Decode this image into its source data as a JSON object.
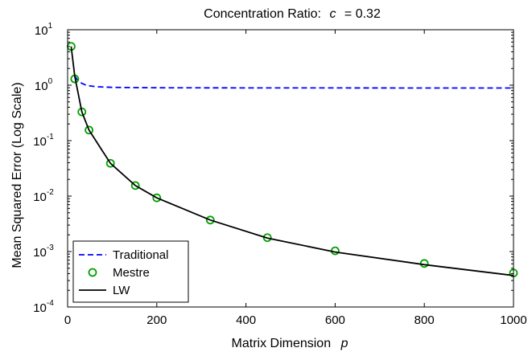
{
  "chart_data": {
    "type": "line",
    "title": "Concentration Ratio:",
    "title_symbol": "c",
    "title_value": "= 0.32",
    "xlabel": "Matrix Dimension",
    "xlabel_symbol": "p",
    "ylabel": "Mean Squared Error (Log Scale)",
    "xlim": [
      0,
      1000
    ],
    "ylim": [
      0.0001,
      10
    ],
    "yscale": "log",
    "grid": false,
    "legend_position": "bottom-left",
    "x_ticks": [
      0,
      200,
      400,
      600,
      800,
      1000
    ],
    "x_tick_labels": [
      "0",
      "200",
      "400",
      "600",
      "800",
      "1000"
    ],
    "y_ticks": [
      0.0001,
      0.001,
      0.01,
      0.1,
      1,
      10
    ],
    "y_tick_base": "10",
    "y_tick_exponents": [
      "-4",
      "-3",
      "-2",
      "-1",
      "0",
      "1"
    ],
    "series": [
      {
        "name": "Traditional",
        "style": "dashed",
        "color": "#0000ff",
        "x": [
          16,
          20,
          25,
          32,
          40,
          50,
          64,
          80,
          100,
          150,
          200,
          320,
          450,
          600,
          800,
          1000
        ],
        "y": [
          1.45,
          1.3,
          1.18,
          1.08,
          1.01,
          0.97,
          0.94,
          0.925,
          0.915,
          0.905,
          0.9,
          0.895,
          0.893,
          0.892,
          0.891,
          0.89
        ]
      },
      {
        "name": "Mestre",
        "style": "markers",
        "color": "#00a000",
        "x": [
          8,
          16,
          32,
          48,
          96,
          152,
          200,
          320,
          448,
          600,
          800,
          1000
        ],
        "y": [
          5.0,
          1.3,
          0.33,
          0.155,
          0.039,
          0.0155,
          0.0093,
          0.0037,
          0.00178,
          0.00103,
          0.00061,
          0.00041
        ]
      },
      {
        "name": "LW",
        "style": "solid",
        "color": "#000000",
        "x": [
          8,
          16,
          32,
          48,
          96,
          152,
          200,
          320,
          448,
          600,
          800,
          1000
        ],
        "y": [
          5.0,
          1.45,
          0.33,
          0.155,
          0.039,
          0.0155,
          0.0093,
          0.0037,
          0.00175,
          0.00098,
          0.00058,
          0.00037
        ]
      }
    ]
  }
}
